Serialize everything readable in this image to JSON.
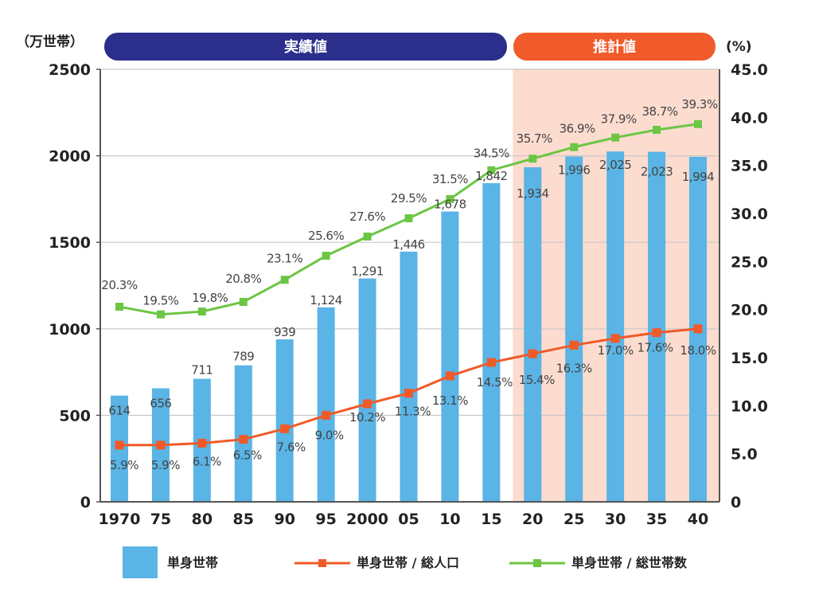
{
  "chart_data": {
    "type": "bar",
    "title": "",
    "categories": [
      "1970",
      "75",
      "80",
      "85",
      "90",
      "95",
      "2000",
      "05",
      "10",
      "15",
      "20",
      "25",
      "30",
      "35",
      "40"
    ],
    "left_axis": {
      "unit_label": "（万世帯）",
      "ylim": [
        0,
        2500
      ],
      "ticks": [
        "0",
        "500",
        "1000",
        "1500",
        "2000",
        "2500"
      ]
    },
    "right_axis": {
      "unit_label": "(%)",
      "ylim": [
        0,
        45
      ],
      "ticks": [
        "0",
        "5.0",
        "10.0",
        "15.0",
        "20.0",
        "25.0",
        "30.0",
        "35.0",
        "40.0",
        "45.0"
      ]
    },
    "grid": true,
    "periods": [
      {
        "label": "実績値",
        "from_index": 0,
        "to_index": 9,
        "color": "#2b2e8a"
      },
      {
        "label": "推計値",
        "from_index": 10,
        "to_index": 14,
        "color": "#f15a2b",
        "shade": "#fcdccf"
      }
    ],
    "series": [
      {
        "name": "単身世帯",
        "type": "bar",
        "axis": "left",
        "color": "#5ab4e5",
        "values": [
          614,
          656,
          711,
          789,
          939,
          1124,
          1291,
          1446,
          1678,
          1842,
          1934,
          1996,
          2025,
          2023,
          1994
        ],
        "labels": [
          "614",
          "656",
          "711",
          "789",
          "939",
          "1,124",
          "1,291",
          "1,446",
          "1,678",
          "1,842",
          "1,934",
          "1,996",
          "2,025",
          "2,023",
          "1,994"
        ]
      },
      {
        "name": "単身世帯 / 総人口",
        "type": "line",
        "axis": "right",
        "color": "#f05a28",
        "values": [
          5.9,
          5.9,
          6.1,
          6.5,
          7.6,
          9.0,
          10.2,
          11.3,
          13.1,
          14.5,
          15.4,
          16.3,
          17.0,
          17.6,
          18.0
        ],
        "labels": [
          "5.9%",
          "5.9%",
          "6.1%",
          "6.5%",
          "7.6%",
          "9.0%",
          "10.2%",
          "11.3%",
          "13.1%",
          "14.5%",
          "15.4%",
          "16.3%",
          "17.0%",
          "17.6%",
          "18.0%"
        ]
      },
      {
        "name": "単身世帯 / 総世帯数",
        "type": "line",
        "axis": "right",
        "color": "#6cc644",
        "values": [
          20.3,
          19.5,
          19.8,
          20.8,
          23.1,
          25.6,
          27.6,
          29.5,
          31.5,
          34.5,
          35.7,
          36.9,
          37.9,
          38.7,
          39.3
        ],
        "labels": [
          "20.3%",
          "19.5%",
          "19.8%",
          "20.8%",
          "23.1%",
          "25.6%",
          "27.6%",
          "29.5%",
          "31.5%",
          "34.5%",
          "35.7%",
          "36.9%",
          "37.9%",
          "38.7%",
          "39.3%"
        ]
      }
    ],
    "legend": {
      "placement": "bottom",
      "entries": [
        "単身世帯",
        "単身世帯 / 総人口",
        "単身世帯 / 総世帯数"
      ]
    }
  }
}
